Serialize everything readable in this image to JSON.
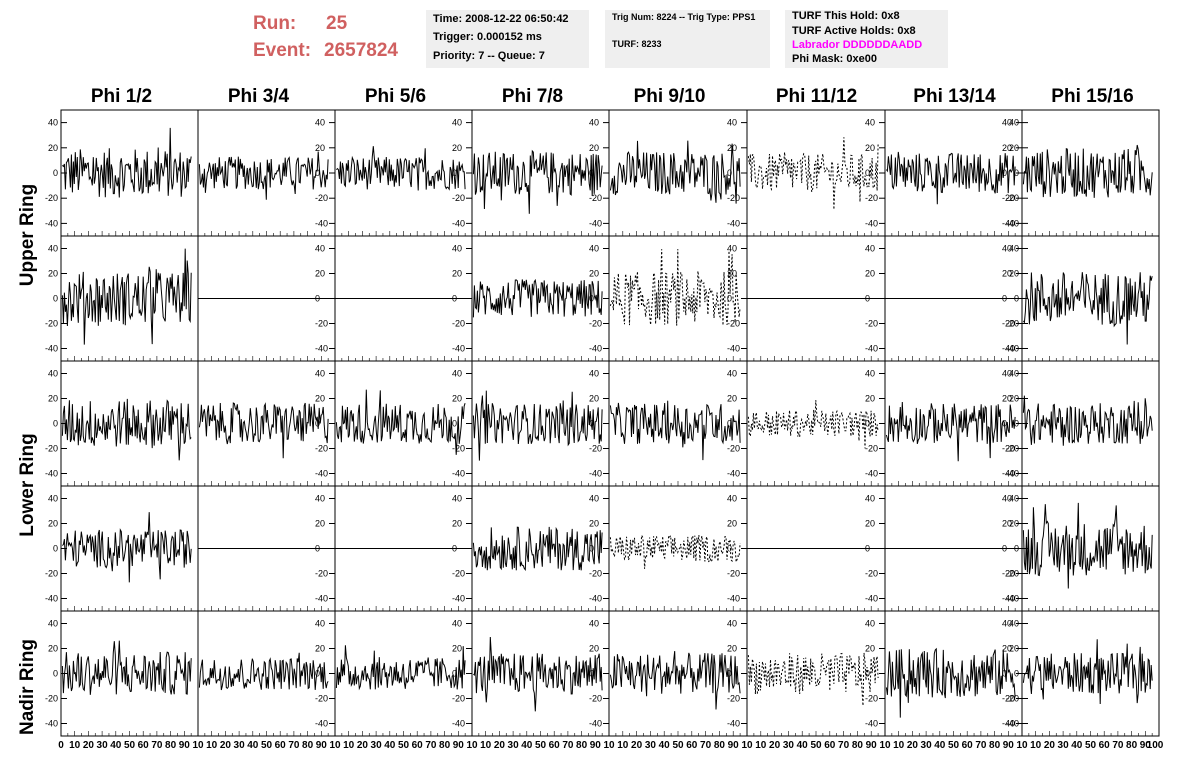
{
  "header": {
    "run_label": "Run:",
    "run_value": "25",
    "event_label": "Event:",
    "event_value": "2657824"
  },
  "info_box_1": {
    "time": "Time: 2008-12-22 06:50:42",
    "trigger": "Trigger: 0.000152 ms",
    "priority": "Priority: 7 -- Queue: 7"
  },
  "info_box_2": {
    "trig": "Trig Num: 8224 -- Trig Type: PPS1",
    "turf": "TURF: 8233"
  },
  "info_box_3": {
    "hold": "TURF This Hold: 0x8",
    "active": "TURF Active Holds: 0x8",
    "labrador": "Labrador DDDDDDAADD",
    "phimask": "Phi Mask: 0xe00"
  },
  "colors": {
    "run_text": "#d06060",
    "labrador_text": "#ff00ff",
    "info_bg": "#efefef",
    "trace": "#000000"
  },
  "columns": [
    "Phi 1/2",
    "Phi 3/4",
    "Phi 5/6",
    "Phi 7/8",
    "Phi 9/10",
    "Phi 11/12",
    "Phi 13/14",
    "Phi 15/16"
  ],
  "rows": [
    "Upper Ring",
    "Lower Ring",
    "Nadir Ring"
  ],
  "chart_data": {
    "type": "line",
    "description_of_grid": "5 rows x 8 columns of waveform panels",
    "ylim": [
      -50,
      50
    ],
    "y_ticks": [
      -40,
      -20,
      0,
      20,
      40
    ],
    "xlim": [
      0,
      100
    ],
    "x_ticks_col1": [
      0,
      10,
      20,
      30,
      40,
      50,
      60,
      70,
      80,
      90,
      100
    ],
    "x_tick_labels_shown": [
      "0",
      "10",
      "20",
      "30",
      "40",
      "50",
      "60",
      "70",
      "80",
      "90",
      "10",
      "10",
      "20",
      "30",
      "40",
      "50",
      "60",
      "70",
      "80",
      "90",
      "10",
      "10",
      "20",
      "30",
      "40",
      "50",
      "60",
      "70",
      "80",
      "90",
      "10",
      "10",
      "20",
      "30",
      "40",
      "50",
      "60",
      "70",
      "80",
      "90",
      "10",
      "10",
      "20",
      "30",
      "40",
      "50",
      "60",
      "70",
      "80",
      "90",
      "10",
      "10",
      "20",
      "30",
      "40",
      "50",
      "60",
      "70",
      "80",
      "90",
      "10",
      "10",
      "20",
      "30",
      "40",
      "50",
      "60",
      "70",
      "80",
      "90",
      "10",
      "10",
      "20",
      "30",
      "40",
      "50",
      "60",
      "70",
      "80",
      "90",
      "100"
    ],
    "panels": [
      [
        {
          "style": "solid",
          "amp": 18
        },
        {
          "style": "solid",
          "amp": 12
        },
        {
          "style": "solid",
          "amp": 12
        },
        {
          "style": "solid",
          "amp": 16
        },
        {
          "style": "solid",
          "amp": 16
        },
        {
          "style": "dashed",
          "amp": 14
        },
        {
          "style": "solid",
          "amp": 15
        },
        {
          "style": "solid",
          "amp": 18
        }
      ],
      [
        {
          "style": "solid",
          "amp": 20
        },
        {
          "style": "flat",
          "amp": 0
        },
        {
          "style": "flat",
          "amp": 0
        },
        {
          "style": "solid",
          "amp": 14
        },
        {
          "style": "dashed",
          "amp": 20
        },
        {
          "style": "flat",
          "amp": 0
        },
        {
          "style": "flat",
          "amp": 0
        },
        {
          "style": "solid",
          "amp": 20
        }
      ],
      [
        {
          "style": "solid",
          "amp": 18
        },
        {
          "style": "solid",
          "amp": 15
        },
        {
          "style": "solid",
          "amp": 15
        },
        {
          "style": "solid",
          "amp": 15
        },
        {
          "style": "solid",
          "amp": 15
        },
        {
          "style": "dashed",
          "amp": 10
        },
        {
          "style": "solid",
          "amp": 15
        },
        {
          "style": "solid",
          "amp": 15
        }
      ],
      [
        {
          "style": "solid",
          "amp": 14
        },
        {
          "style": "flat",
          "amp": 0
        },
        {
          "style": "flat",
          "amp": 0
        },
        {
          "style": "solid",
          "amp": 16
        },
        {
          "style": "dashed",
          "amp": 10
        },
        {
          "style": "flat",
          "amp": 0
        },
        {
          "style": "flat",
          "amp": 0
        },
        {
          "style": "solid",
          "amp": 20
        }
      ],
      [
        {
          "style": "solid",
          "amp": 16
        },
        {
          "style": "solid",
          "amp": 12
        },
        {
          "style": "solid",
          "amp": 12
        },
        {
          "style": "solid",
          "amp": 15
        },
        {
          "style": "solid",
          "amp": 15
        },
        {
          "style": "dashed",
          "amp": 15
        },
        {
          "style": "solid",
          "amp": 18
        },
        {
          "style": "solid",
          "amp": 15
        }
      ]
    ]
  }
}
